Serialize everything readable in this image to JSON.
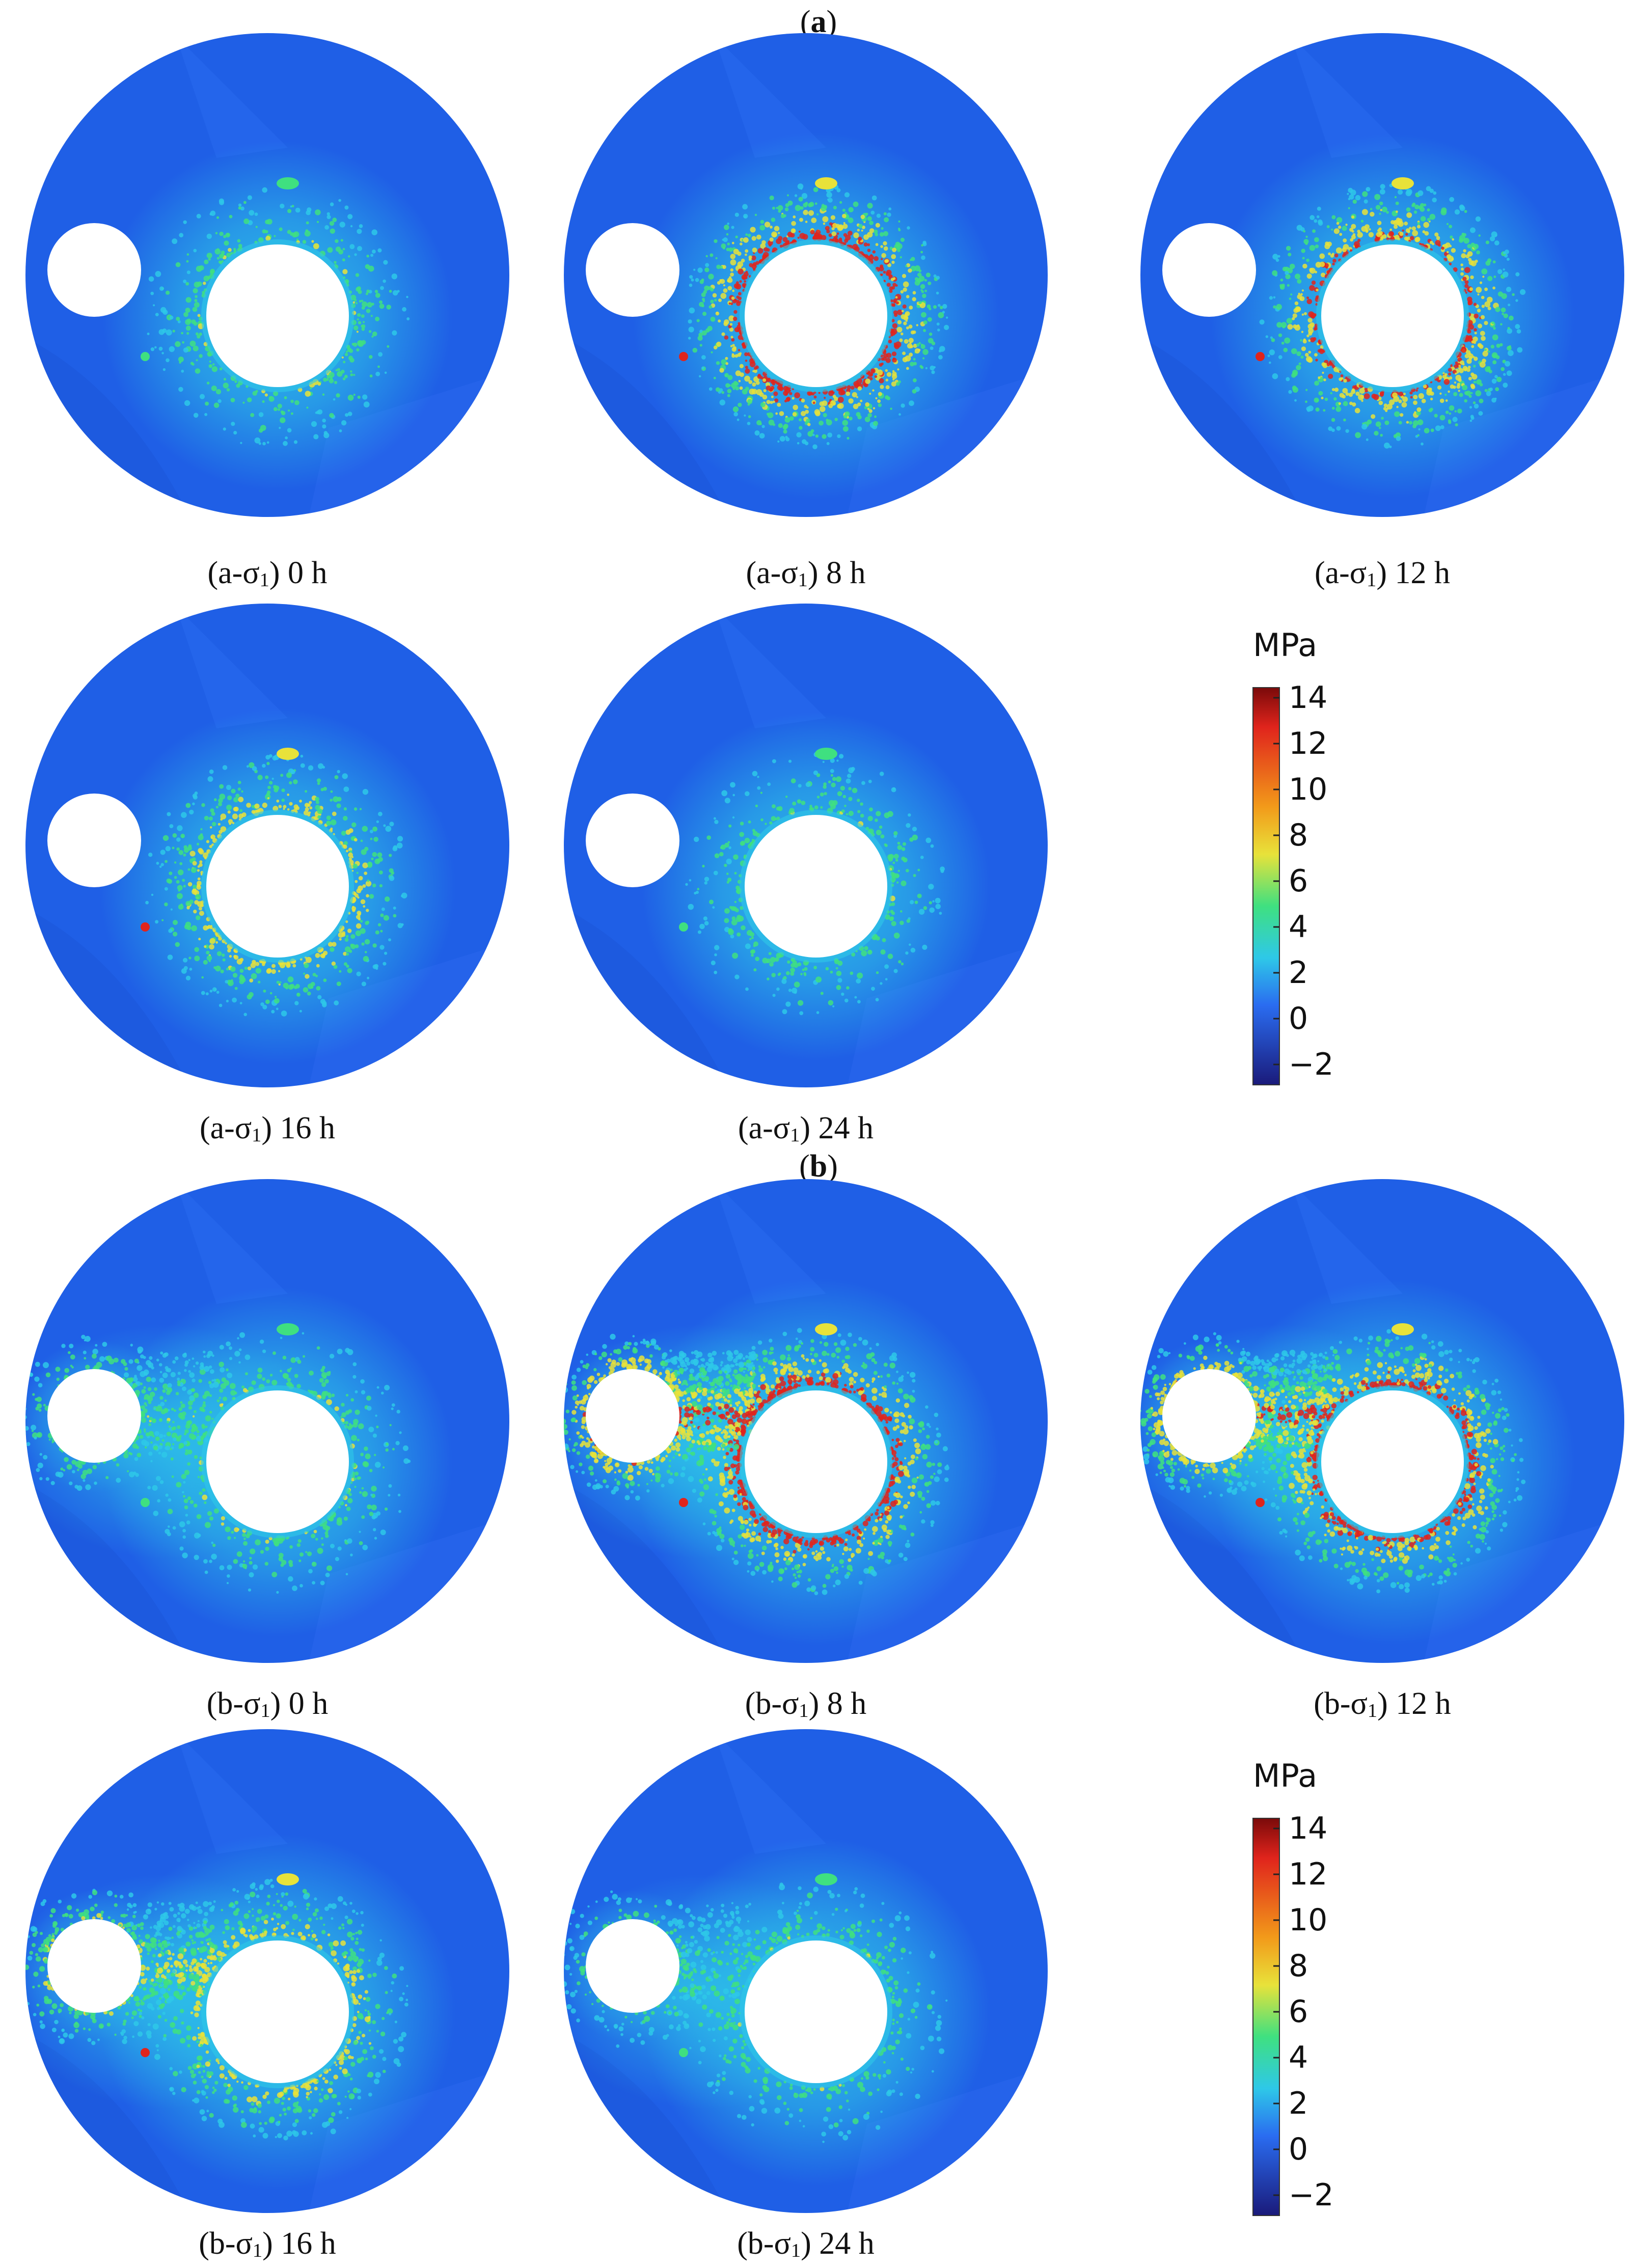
{
  "sections": [
    {
      "id": "a",
      "title_open": "(",
      "title_letter": "a",
      "title_close": ")",
      "panels": [
        {
          "prefix": "(a-σ",
          "sub": "1",
          "time": ") 0 h",
          "intensity": 0.45,
          "bridge": 0.0
        },
        {
          "prefix": "(a-σ",
          "sub": "1",
          "time": ") 8 h",
          "intensity": 1.0,
          "bridge": 0.0
        },
        {
          "prefix": "(a-σ",
          "sub": "1",
          "time": ") 12 h",
          "intensity": 0.9,
          "bridge": 0.0
        },
        {
          "prefix": "(a-σ",
          "sub": "1",
          "time": ") 16 h",
          "intensity": 0.65,
          "bridge": 0.0
        },
        {
          "prefix": "(a-σ",
          "sub": "1",
          "time": ") 24 h",
          "intensity": 0.4,
          "bridge": 0.0
        }
      ],
      "colorbar": {
        "unit": "MPa",
        "ticks": [
          "14",
          "12",
          "10",
          "8",
          "6",
          "4",
          "2",
          "0",
          "−2"
        ]
      }
    },
    {
      "id": "b",
      "title_open": "(",
      "title_letter": "b",
      "title_close": ")",
      "panels": [
        {
          "prefix": "(b-σ",
          "sub": "1",
          "time": ") 0 h",
          "intensity": 0.45,
          "bridge": 0.5
        },
        {
          "prefix": "(b-σ",
          "sub": "1",
          "time": ") 8 h",
          "intensity": 1.0,
          "bridge": 1.0
        },
        {
          "prefix": "(b-σ",
          "sub": "1",
          "time": ") 12 h",
          "intensity": 0.95,
          "bridge": 0.95
        },
        {
          "prefix": "(b-σ",
          "sub": "1",
          "time": ") 16 h",
          "intensity": 0.65,
          "bridge": 0.7
        },
        {
          "prefix": "(b-σ",
          "sub": "1",
          "time": ") 24 h",
          "intensity": 0.4,
          "bridge": 0.4
        }
      ],
      "colorbar": {
        "unit": "MPa",
        "ticks": [
          "14",
          "12",
          "10",
          "8",
          "6",
          "4",
          "2",
          "0",
          "−2"
        ]
      }
    }
  ],
  "colors": {
    "background_field": "#1f5fe6",
    "low": "#2438a8",
    "cyan": "#2ec8e8",
    "green": "#3fe080",
    "yellow": "#e8e23a",
    "red": "#e0241c",
    "hole": "#ffffff"
  }
}
